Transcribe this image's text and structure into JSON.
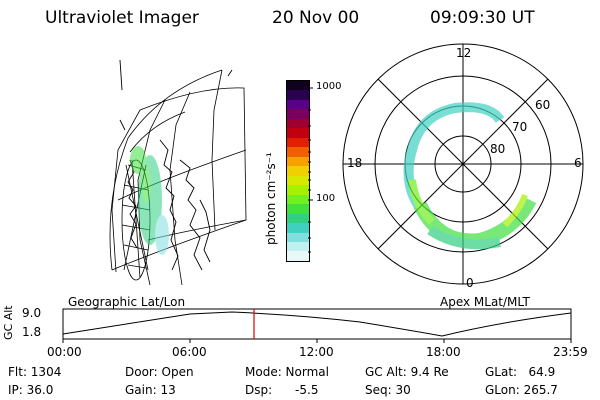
{
  "header": {
    "instrument": "Ultraviolet Imager",
    "date": "20 Nov 00",
    "time": "09:09:30 UT"
  },
  "colorbar": {
    "unit_label": "photon cm⁻²s⁻¹",
    "ticks": [
      "1000",
      "100"
    ],
    "colors_top_to_bottom": [
      "#120020",
      "#2a0050",
      "#5a0088",
      "#7a0060",
      "#a00030",
      "#c00010",
      "#e02000",
      "#f06000",
      "#f8a000",
      "#f0d000",
      "#d8e800",
      "#a8f000",
      "#70f020",
      "#40e040",
      "#30d080",
      "#40d0c0",
      "#80e0e0",
      "#c0f0f0",
      "#e8f8f8"
    ]
  },
  "left_panel": {
    "label": "Geographic Lat/Lon"
  },
  "polar_plot": {
    "label": "Apex MLat/MLT",
    "mlt_labels": [
      "12",
      "18",
      "6",
      "0"
    ],
    "lat_labels": [
      "60",
      "70",
      "80"
    ]
  },
  "altitude_plot": {
    "ylabel": "GC Alt",
    "yticks": [
      "9.0",
      "1.8"
    ],
    "xticks": [
      "00:00",
      "06:00",
      "12:00",
      "18:00",
      "23:59"
    ],
    "marker_time": "09:09:30"
  },
  "info": {
    "flt": "Flt: 1304",
    "ip": "IP: 36.0",
    "door": "Door: Open",
    "gain": "Gain: 13",
    "mode": "Mode: Normal",
    "dsp": "Dsp:      -5.5",
    "gcalt": "GC Alt: 9.4 Re",
    "seq": "Seq: 30",
    "glat": "GLat:   64.9",
    "glon": "GLon: 265.7"
  }
}
